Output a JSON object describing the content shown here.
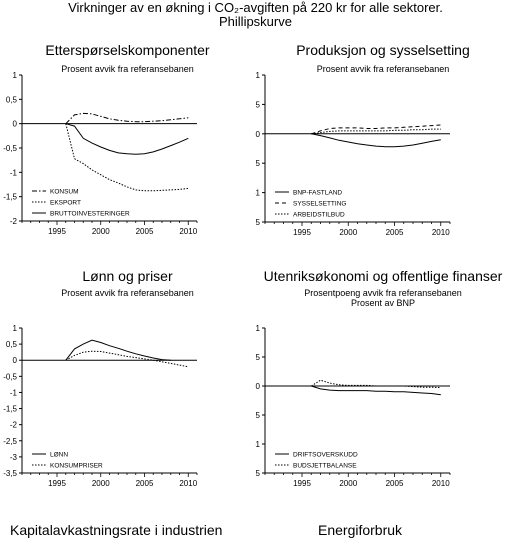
{
  "page": {
    "title_line1": "Virkninger av en økning i CO₂-avgiften på 220 kr for alle sektorer.",
    "title_line2": "Phillipskurve",
    "bottom_left_title": "Kapitalavkastningsrate i industrien",
    "bottom_right_title": "Energiforbruk"
  },
  "chart_data": [
    {
      "type": "line",
      "title": "Etterspørselskomponenter",
      "subtitle": "Prosent avvik fra referansebanen",
      "ylim": [
        -2,
        1
      ],
      "yticks": [
        "1",
        "0,5",
        "0",
        "-0,5",
        "-1",
        "-1,5",
        "-2"
      ],
      "xticks": [
        "1995",
        "2000",
        "2005",
        "2010"
      ],
      "xlim": [
        1991,
        2011
      ],
      "series": [
        {
          "name": "KONSUM",
          "style": "dashdot",
          "x": [
            1996,
            1997,
            1998,
            1999,
            2000,
            2001,
            2002,
            2003,
            2004,
            2005,
            2006,
            2007,
            2008,
            2009,
            2010
          ],
          "y": [
            0,
            0.18,
            0.21,
            0.2,
            0.15,
            0.1,
            0.07,
            0.05,
            0.04,
            0.04,
            0.05,
            0.06,
            0.08,
            0.1,
            0.12
          ]
        },
        {
          "name": "EKSPORT",
          "style": "dotted",
          "x": [
            1996,
            1997,
            1998,
            1999,
            2000,
            2001,
            2002,
            2003,
            2004,
            2005,
            2006,
            2007,
            2008,
            2009,
            2010
          ],
          "y": [
            0,
            -0.72,
            -0.82,
            -0.95,
            -1.05,
            -1.15,
            -1.22,
            -1.3,
            -1.36,
            -1.38,
            -1.38,
            -1.37,
            -1.36,
            -1.35,
            -1.33
          ]
        },
        {
          "name": "BRUTTOINVESTERINGER",
          "style": "solid",
          "x": [
            1996,
            1997,
            1998,
            1999,
            2000,
            2001,
            2002,
            2003,
            2004,
            2005,
            2006,
            2007,
            2008,
            2009,
            2010
          ],
          "y": [
            0,
            -0.05,
            -0.3,
            -0.4,
            -0.48,
            -0.55,
            -0.6,
            -0.62,
            -0.63,
            -0.62,
            -0.58,
            -0.52,
            -0.45,
            -0.38,
            -0.3
          ]
        }
      ]
    },
    {
      "type": "line",
      "title": "Produksjon og sysselsetting",
      "subtitle": "Prosent avvik fra referansebanen",
      "ylim": [
        -1.5,
        1
      ],
      "yticks": [
        "1",
        "0,5",
        "0",
        "-0,5",
        "-1",
        "-1,5"
      ],
      "xticks": [
        "1995",
        "2000",
        "2005",
        "2010"
      ],
      "xlim": [
        1991,
        2011
      ],
      "series": [
        {
          "name": "BNP-FASTLAND",
          "style": "solid",
          "x": [
            1996,
            1997,
            1998,
            1999,
            2000,
            2001,
            2002,
            2003,
            2004,
            2005,
            2006,
            2007,
            2008,
            2009,
            2010
          ],
          "y": [
            0,
            -0.03,
            -0.07,
            -0.11,
            -0.14,
            -0.17,
            -0.19,
            -0.21,
            -0.22,
            -0.22,
            -0.21,
            -0.19,
            -0.16,
            -0.13,
            -0.1
          ]
        },
        {
          "name": "SYSSELSETTING",
          "style": "dashed",
          "x": [
            1996,
            1997,
            1998,
            1999,
            2000,
            2001,
            2002,
            2003,
            2004,
            2005,
            2006,
            2007,
            2008,
            2009,
            2010
          ],
          "y": [
            0,
            0.05,
            0.09,
            0.1,
            0.1,
            0.1,
            0.09,
            0.09,
            0.1,
            0.1,
            0.11,
            0.12,
            0.13,
            0.14,
            0.15
          ]
        },
        {
          "name": "ARBEIDSTILBUD",
          "style": "dotted",
          "x": [
            1996,
            1997,
            1998,
            1999,
            2000,
            2001,
            2002,
            2003,
            2004,
            2005,
            2006,
            2007,
            2008,
            2009,
            2010
          ],
          "y": [
            0,
            0.02,
            0.04,
            0.05,
            0.05,
            0.05,
            0.05,
            0.05,
            0.05,
            0.06,
            0.06,
            0.07,
            0.07,
            0.08,
            0.08
          ]
        }
      ]
    },
    {
      "type": "line",
      "title": "Lønn og priser",
      "subtitle": "Prosent avvik fra referansebanen",
      "ylim": [
        -3.5,
        1
      ],
      "yticks": [
        "1",
        "0,5",
        "0",
        "-0,5",
        "-1",
        "-1,5",
        "-2",
        "-2,5",
        "-3",
        "-3,5"
      ],
      "xticks": [
        "1995",
        "2000",
        "2005",
        "2010"
      ],
      "xlim": [
        1991,
        2011
      ],
      "series": [
        {
          "name": "LØNN",
          "style": "solid",
          "x": [
            1996,
            1997,
            1998,
            1999,
            2000,
            2001,
            2002,
            2003,
            2004,
            2005,
            2006,
            2007,
            2008
          ],
          "y": [
            0,
            0.35,
            0.5,
            0.62,
            0.55,
            0.45,
            0.37,
            0.28,
            0.2,
            0.13,
            0.07,
            0.02,
            0
          ]
        },
        {
          "name": "KONSUMPRISER",
          "style": "dotted",
          "x": [
            1996,
            1997,
            1998,
            1999,
            2000,
            2001,
            2002,
            2003,
            2004,
            2005,
            2006,
            2007,
            2008,
            2009,
            2010
          ],
          "y": [
            0,
            0.15,
            0.25,
            0.28,
            0.27,
            0.22,
            0.17,
            0.12,
            0.08,
            0.04,
            0,
            -0.05,
            -0.1,
            -0.15,
            -0.2
          ]
        }
      ]
    },
    {
      "type": "line",
      "title": "Utenriksøkonomi og offentlige finanser",
      "subtitle": "Prosentpoeng avvik fra referansebanen",
      "subtitle2": "Prosent av BNP",
      "ylim": [
        -1.5,
        1
      ],
      "yticks": [
        "1",
        "0,5",
        "0",
        "-0,5",
        "-1",
        "-1,5"
      ],
      "xticks": [
        "1995",
        "2000",
        "2005",
        "2010"
      ],
      "xlim": [
        1991,
        2011
      ],
      "series": [
        {
          "name": "DRIFTSOVERSKUDD",
          "style": "solid",
          "x": [
            1996,
            1997,
            1998,
            1999,
            2000,
            2001,
            2002,
            2003,
            2004,
            2005,
            2006,
            2007,
            2008,
            2009,
            2010
          ],
          "y": [
            0,
            -0.05,
            -0.07,
            -0.08,
            -0.08,
            -0.08,
            -0.08,
            -0.09,
            -0.09,
            -0.1,
            -0.1,
            -0.11,
            -0.12,
            -0.13,
            -0.15
          ]
        },
        {
          "name": "BUDSJETTBALANSE",
          "style": "dotted",
          "x": [
            1996,
            1997,
            1998,
            1999,
            2000,
            2001,
            2002,
            2003,
            2004,
            2005,
            2006,
            2007,
            2008,
            2009,
            2010
          ],
          "y": [
            0,
            0.1,
            0.05,
            0.02,
            0.01,
            0.01,
            0.01,
            0,
            0,
            0,
            0,
            -0.01,
            -0.02,
            -0.02,
            -0.03
          ]
        }
      ]
    }
  ]
}
